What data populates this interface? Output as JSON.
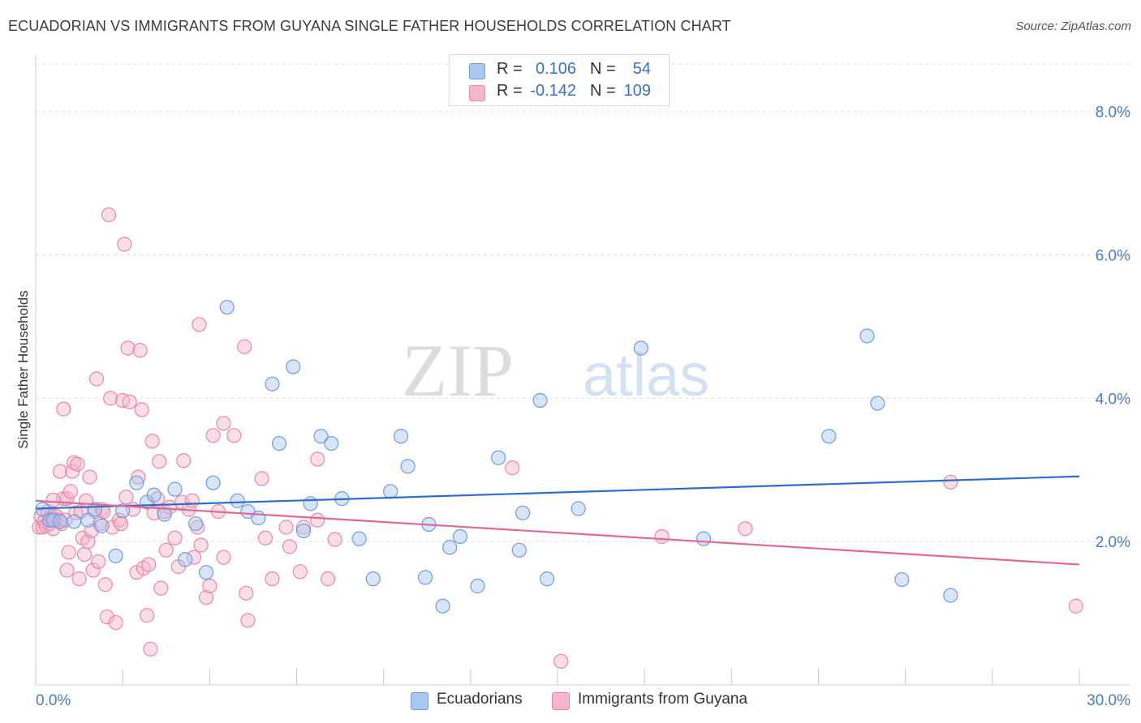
{
  "header": {
    "title": "ECUADORIAN VS IMMIGRANTS FROM GUYANA SINGLE FATHER HOUSEHOLDS CORRELATION CHART",
    "source": "Source: ZipAtlas.com"
  },
  "watermark": {
    "part1": "ZIP",
    "part2": "atlas"
  },
  "legend": {
    "rows": [
      {
        "r_label": "R =",
        "r_value": "0.106",
        "n_label": "N =",
        "n_value": "54"
      },
      {
        "r_label": "R =",
        "r_value": "-0.142",
        "n_label": "N =",
        "n_value": "109"
      }
    ]
  },
  "bottom_legend": {
    "items": [
      {
        "label": "Ecuadorians"
      },
      {
        "label": "Immigrants from Guyana"
      }
    ]
  },
  "colors": {
    "blue_fill": "#a9c6ee",
    "blue_stroke": "#6d9de0",
    "blue_line": "#2d6ec9",
    "pink_fill": "#f5b6ca",
    "pink_stroke": "#eb86a8",
    "pink_line": "#e06893",
    "tick_text": "#4a7cc4"
  },
  "chart_data": {
    "type": "scatter",
    "title": "ECUADORIAN VS IMMIGRANTS FROM GUYANA SINGLE FATHER HOUSEHOLDS CORRELATION CHART",
    "xlabel": "",
    "ylabel": "Single Father Households",
    "xlim": [
      0,
      30
    ],
    "ylim": [
      0,
      8.8
    ],
    "x_tick_labels": [
      "0.0%",
      "30.0%"
    ],
    "y_ticks": [
      2,
      4,
      6,
      8
    ],
    "y_tick_labels": [
      "2.0%",
      "4.0%",
      "6.0%",
      "8.0%"
    ],
    "grid": true,
    "legend_position": "top-center",
    "series": [
      {
        "name": "Ecuadorians",
        "color": "#a9c6ee",
        "trend": {
          "x": [
            0,
            30
          ],
          "y": [
            2.46,
            2.91
          ]
        },
        "points": [
          [
            0.2,
            2.45
          ],
          [
            0.4,
            2.3
          ],
          [
            0.5,
            2.3
          ],
          [
            0.7,
            2.28
          ],
          [
            1.1,
            2.28
          ],
          [
            1.5,
            2.3
          ],
          [
            1.7,
            2.45
          ],
          [
            1.9,
            2.22
          ],
          [
            2.3,
            1.8
          ],
          [
            2.5,
            2.43
          ],
          [
            2.9,
            2.82
          ],
          [
            3.2,
            2.55
          ],
          [
            3.4,
            2.65
          ],
          [
            3.7,
            2.38
          ],
          [
            4.0,
            2.73
          ],
          [
            4.3,
            1.75
          ],
          [
            4.6,
            2.25
          ],
          [
            4.9,
            1.57
          ],
          [
            5.1,
            2.82
          ],
          [
            5.5,
            5.27
          ],
          [
            5.8,
            2.57
          ],
          [
            6.1,
            2.42
          ],
          [
            6.4,
            2.33
          ],
          [
            6.8,
            4.2
          ],
          [
            7.0,
            3.37
          ],
          [
            7.4,
            4.44
          ],
          [
            7.7,
            2.15
          ],
          [
            7.9,
            2.53
          ],
          [
            8.2,
            3.47
          ],
          [
            8.5,
            3.37
          ],
          [
            8.8,
            2.6
          ],
          [
            9.3,
            2.04
          ],
          [
            9.7,
            1.48
          ],
          [
            10.2,
            2.7
          ],
          [
            10.5,
            3.47
          ],
          [
            10.7,
            3.05
          ],
          [
            11.2,
            1.5
          ],
          [
            11.3,
            2.24
          ],
          [
            11.7,
            1.1
          ],
          [
            11.9,
            1.92
          ],
          [
            12.2,
            2.07
          ],
          [
            12.7,
            1.38
          ],
          [
            13.3,
            3.17
          ],
          [
            13.9,
            1.88
          ],
          [
            14.0,
            2.4
          ],
          [
            14.5,
            3.97
          ],
          [
            14.7,
            1.48
          ],
          [
            15.6,
            2.46
          ],
          [
            17.4,
            4.7
          ],
          [
            19.2,
            2.04
          ],
          [
            22.8,
            3.47
          ],
          [
            23.9,
            4.87
          ],
          [
            24.2,
            3.93
          ],
          [
            24.9,
            1.47
          ],
          [
            26.3,
            1.25
          ]
        ]
      },
      {
        "name": "Immigrants from Guyana",
        "color": "#f5b6ca",
        "trend": {
          "x": [
            0,
            30
          ],
          "y": [
            2.57,
            1.68
          ]
        },
        "points": [
          [
            0.1,
            2.2
          ],
          [
            0.15,
            2.35
          ],
          [
            0.2,
            2.2
          ],
          [
            0.25,
            2.28
          ],
          [
            0.3,
            2.22
          ],
          [
            0.35,
            2.42
          ],
          [
            0.4,
            2.25
          ],
          [
            0.45,
            2.35
          ],
          [
            0.5,
            2.18
          ],
          [
            0.5,
            2.58
          ],
          [
            0.55,
            2.3
          ],
          [
            0.6,
            2.35
          ],
          [
            0.65,
            2.3
          ],
          [
            0.7,
            2.98
          ],
          [
            0.75,
            2.25
          ],
          [
            0.8,
            2.6
          ],
          [
            0.8,
            3.85
          ],
          [
            0.85,
            2.3
          ],
          [
            0.9,
            2.6
          ],
          [
            0.9,
            1.6
          ],
          [
            0.95,
            1.85
          ],
          [
            1.0,
            2.7
          ],
          [
            1.05,
            2.98
          ],
          [
            1.1,
            3.1
          ],
          [
            1.15,
            2.4
          ],
          [
            1.2,
            3.08
          ],
          [
            1.25,
            1.48
          ],
          [
            1.3,
            2.42
          ],
          [
            1.35,
            2.05
          ],
          [
            1.4,
            1.82
          ],
          [
            1.45,
            2.57
          ],
          [
            1.5,
            2.0
          ],
          [
            1.55,
            2.9
          ],
          [
            1.6,
            2.15
          ],
          [
            1.65,
            1.6
          ],
          [
            1.7,
            2.42
          ],
          [
            1.75,
            4.27
          ],
          [
            1.8,
            1.72
          ],
          [
            1.85,
            2.25
          ],
          [
            1.9,
            2.45
          ],
          [
            1.95,
            2.42
          ],
          [
            2.0,
            1.4
          ],
          [
            2.05,
            0.95
          ],
          [
            2.1,
            6.56
          ],
          [
            2.15,
            4.0
          ],
          [
            2.2,
            2.2
          ],
          [
            2.3,
            0.87
          ],
          [
            2.4,
            2.3
          ],
          [
            2.45,
            2.25
          ],
          [
            2.5,
            3.97
          ],
          [
            2.55,
            6.15
          ],
          [
            2.6,
            2.62
          ],
          [
            2.65,
            4.7
          ],
          [
            2.7,
            3.95
          ],
          [
            2.8,
            2.45
          ],
          [
            2.9,
            1.57
          ],
          [
            2.95,
            2.9
          ],
          [
            3.0,
            4.67
          ],
          [
            3.05,
            3.84
          ],
          [
            3.1,
            1.63
          ],
          [
            3.2,
            0.97
          ],
          [
            3.25,
            1.68
          ],
          [
            3.3,
            0.5
          ],
          [
            3.35,
            3.4
          ],
          [
            3.4,
            2.4
          ],
          [
            3.5,
            2.6
          ],
          [
            3.55,
            3.12
          ],
          [
            3.6,
            1.35
          ],
          [
            3.7,
            2.42
          ],
          [
            3.75,
            1.88
          ],
          [
            3.85,
            2.48
          ],
          [
            4.0,
            2.05
          ],
          [
            4.1,
            1.65
          ],
          [
            4.2,
            2.55
          ],
          [
            4.25,
            3.13
          ],
          [
            4.4,
            2.45
          ],
          [
            4.5,
            2.57
          ],
          [
            4.55,
            1.78
          ],
          [
            4.65,
            2.2
          ],
          [
            4.7,
            5.03
          ],
          [
            4.75,
            1.95
          ],
          [
            4.9,
            1.22
          ],
          [
            5.0,
            1.38
          ],
          [
            5.1,
            3.48
          ],
          [
            5.25,
            2.42
          ],
          [
            5.4,
            1.78
          ],
          [
            5.4,
            3.65
          ],
          [
            5.7,
            3.48
          ],
          [
            6.0,
            4.72
          ],
          [
            6.05,
            1.28
          ],
          [
            6.1,
            0.9
          ],
          [
            6.5,
            2.88
          ],
          [
            6.6,
            2.05
          ],
          [
            6.8,
            1.48
          ],
          [
            7.2,
            2.2
          ],
          [
            7.3,
            1.93
          ],
          [
            7.6,
            1.58
          ],
          [
            7.7,
            2.2
          ],
          [
            8.1,
            3.15
          ],
          [
            8.1,
            2.3
          ],
          [
            8.4,
            1.48
          ],
          [
            8.6,
            2.03
          ],
          [
            13.7,
            3.03
          ],
          [
            15.1,
            0.33
          ],
          [
            18.0,
            2.07
          ],
          [
            20.4,
            2.18
          ],
          [
            26.3,
            2.83
          ],
          [
            29.9,
            1.1
          ]
        ]
      }
    ]
  }
}
